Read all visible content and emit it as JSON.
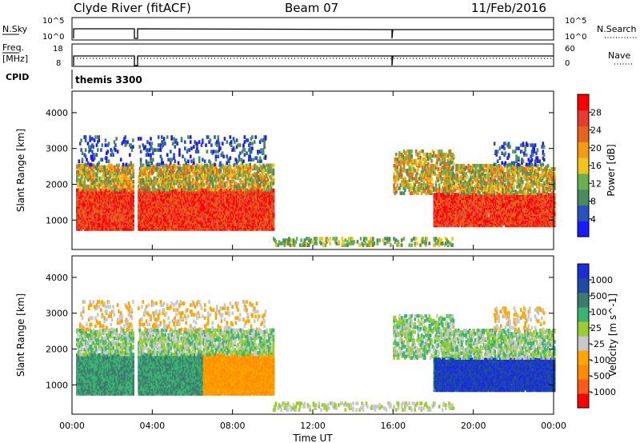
{
  "header": {
    "station": "Clyde River (fitACF)",
    "beam": "Beam 07",
    "date": "11/Feb/2016"
  },
  "strip_labels": {
    "nsky": "N.Sky",
    "nsky_ticks": [
      "10^5",
      "10^0"
    ],
    "nsearch": "N.Search",
    "nsearch_ticks": [
      "10^5",
      "10^0"
    ],
    "freq": "Freq.",
    "freq_unit": "[MHz]",
    "freq_ticks": [
      "18",
      "8"
    ],
    "nave": "Nave",
    "nave_ticks": [
      "60",
      "0"
    ],
    "cpid": "CPID",
    "cpid_value": "themis 3300"
  },
  "colors": {
    "power_scale": [
      "#1a1aff",
      "#2a52be",
      "#4a8c5c",
      "#6ab04c",
      "#f0c419",
      "#f39c12",
      "#e8641c",
      "#e63b2e",
      "#ff0000"
    ],
    "velocity_scale": [
      "#ff0000",
      "#ff5a1a",
      "#ff8c00",
      "#ffa500",
      "#c8c8c8",
      "#9acd32",
      "#3cb371",
      "#3a7d6e",
      "#1f4aa8",
      "#1a2fd6"
    ]
  },
  "chart_data": [
    {
      "type": "heatmap",
      "panel": "power",
      "ylabel": "Slant Range [km]",
      "y_ticks": [
        "4000",
        "3000",
        "2000",
        "1000"
      ],
      "ylim": [
        180,
        4600
      ],
      "x_ticks": [
        "00:00",
        "04:00",
        "08:00",
        "12:00",
        "16:00",
        "20:00",
        "00:00"
      ],
      "xlim": [
        0,
        24
      ],
      "colorbar_label": "Power [dB]",
      "colorbar_ticks": [
        "28",
        "24",
        "20",
        "16",
        "12",
        "8",
        "4"
      ],
      "colorbar_range": [
        0,
        30
      ]
    },
    {
      "type": "heatmap",
      "panel": "velocity",
      "ylabel": "Slant Range [km]",
      "y_ticks": [
        "4000",
        "3000",
        "2000",
        "1000"
      ],
      "ylim": [
        180,
        4600
      ],
      "x_ticks": [
        "00:00",
        "04:00",
        "08:00",
        "12:00",
        "16:00",
        "20:00",
        "00:00"
      ],
      "xlim": [
        0,
        24
      ],
      "xlabel": "Time UT",
      "colorbar_label": "Velocity [m s^-1]",
      "colorbar_ticks": [
        "1000",
        "500",
        "100",
        "25",
        "-25",
        "-100",
        "-500",
        "-1000"
      ],
      "colorbar_range": [
        -1000,
        1000
      ]
    }
  ]
}
